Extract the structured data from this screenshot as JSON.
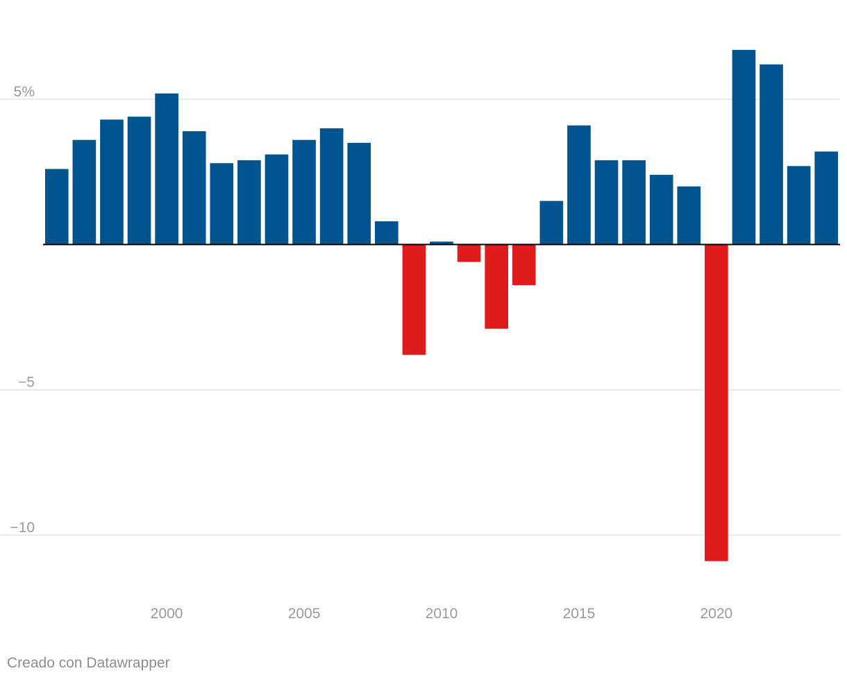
{
  "chart_data": {
    "type": "bar",
    "title": "",
    "xlabel": "",
    "ylabel": "",
    "categories": [
      1996,
      1997,
      1998,
      1999,
      2000,
      2001,
      2002,
      2003,
      2004,
      2005,
      2006,
      2007,
      2008,
      2009,
      2010,
      2011,
      2012,
      2013,
      2014,
      2015,
      2016,
      2017,
      2018,
      2019,
      2020,
      2021,
      2022,
      2023,
      2024
    ],
    "values": [
      2.6,
      3.6,
      4.3,
      4.4,
      5.2,
      3.9,
      2.8,
      2.9,
      3.1,
      3.6,
      4.0,
      3.5,
      0.8,
      -3.8,
      0.1,
      -0.6,
      -2.9,
      -1.4,
      1.5,
      4.1,
      2.9,
      2.9,
      2.4,
      2.0,
      -10.9,
      6.7,
      6.2,
      2.7,
      3.2
    ],
    "ylim": [
      -11.6,
      7.7
    ],
    "y_ticks": [
      {
        "value": 5,
        "label": "5%"
      },
      {
        "value": -5,
        "label": "−5"
      },
      {
        "value": -10,
        "label": "−10"
      }
    ],
    "x_ticks": [
      {
        "value": 2000,
        "label": "2000"
      },
      {
        "value": 2005,
        "label": "2005"
      },
      {
        "value": 2010,
        "label": "2010"
      },
      {
        "value": 2015,
        "label": "2015"
      },
      {
        "value": 2020,
        "label": "2020"
      }
    ],
    "grid": true,
    "legend": "none",
    "colors": {
      "positive": "#00548f",
      "negative": "#e01b1b",
      "grid": "#e3e3e3",
      "zero_line": "#000000"
    }
  },
  "footer": {
    "credit": "Creado con Datawrapper"
  }
}
